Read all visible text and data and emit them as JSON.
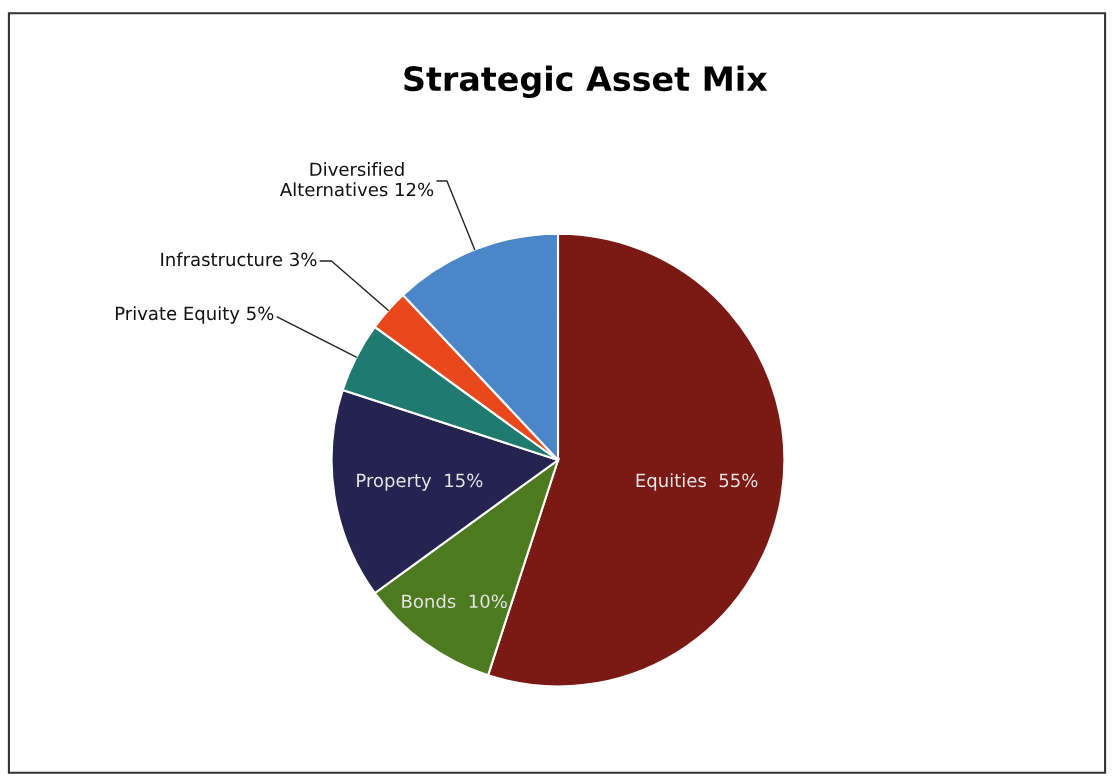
{
  "chart_data": {
    "type": "pie",
    "title": "Strategic Asset Mix",
    "categories": [
      "Equities",
      "Bonds",
      "Property",
      "Private Equity",
      "Infrastructure",
      "Diversified Alternatives"
    ],
    "values": [
      55,
      10,
      15,
      5,
      3,
      12
    ],
    "value_labels": [
      "55%",
      "10%",
      "15%",
      "5%",
      "3%",
      "12%"
    ],
    "colors": [
      "#7b1a14",
      "#4e7a1f",
      "#25234f",
      "#1f7a6f",
      "#e8481c",
      "#4a86c8"
    ]
  }
}
